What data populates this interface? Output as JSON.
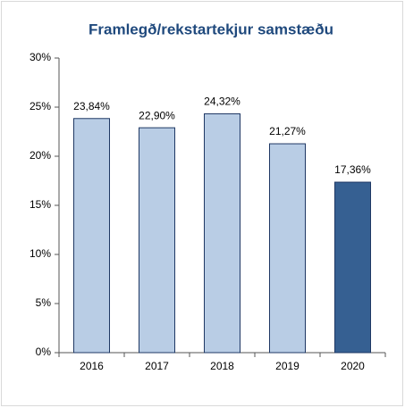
{
  "chart_data": {
    "type": "bar",
    "title": "Framlegð/rekstartekjur samstæðu",
    "categories": [
      "2016",
      "2017",
      "2018",
      "2019",
      "2020"
    ],
    "values": [
      23.84,
      22.9,
      24.32,
      21.27,
      17.36
    ],
    "value_labels": [
      "23,84%",
      "22,90%",
      "24,32%",
      "21,27%",
      "17,36%"
    ],
    "colors": [
      "#b9cde5",
      "#b9cde5",
      "#b9cde5",
      "#b9cde5",
      "#366092"
    ],
    "edgecolor": "#1f3864",
    "ylim": [
      0,
      30
    ],
    "yticks": [
      {
        "value": 0,
        "label": "0%"
      },
      {
        "value": 5,
        "label": "5%"
      },
      {
        "value": 10,
        "label": "10%"
      },
      {
        "value": 15,
        "label": "15%"
      },
      {
        "value": 20,
        "label": "20%"
      },
      {
        "value": 25,
        "label": "25%"
      },
      {
        "value": 30,
        "label": "30%"
      }
    ],
    "grid": false
  }
}
